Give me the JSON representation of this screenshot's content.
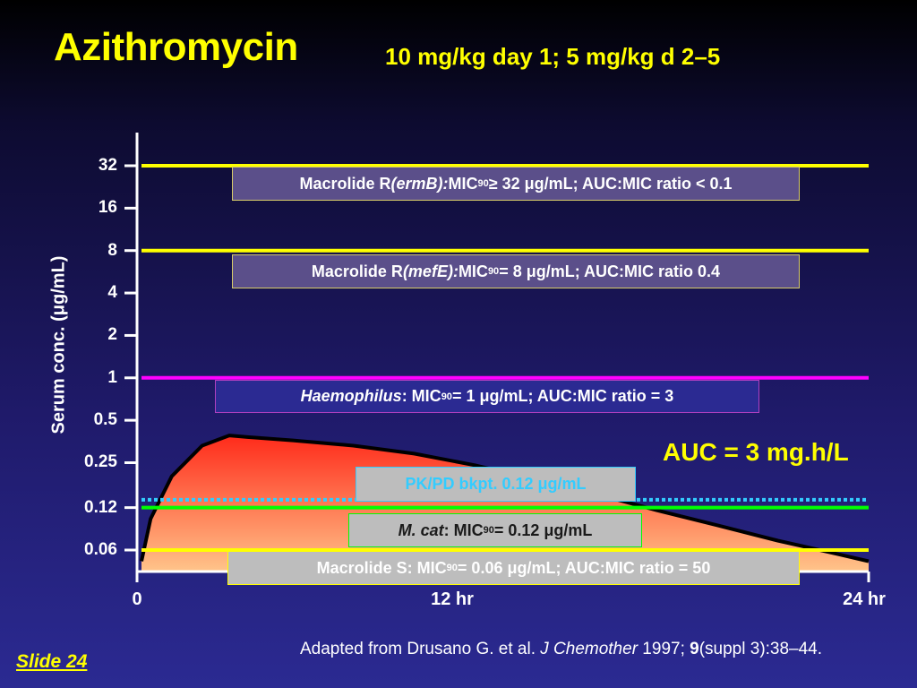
{
  "header": {
    "title": "Azithromycin",
    "subtitle": "10 mg/kg day 1; 5 mg/kg d 2–5"
  },
  "chart_data": {
    "type": "area",
    "ylabel": "Serum conc. (μg/mL)",
    "y_scale": "log2",
    "y_ticks": [
      "32",
      "16",
      "8",
      "4",
      "2",
      "1",
      "0.5",
      "0.25",
      "0.12",
      "0.06"
    ],
    "x_ticks": [
      "0",
      "12 hr",
      "24 hr"
    ],
    "xlim_hours": [
      0,
      24
    ],
    "series": [
      {
        "x_hours": [
          0,
          0.3,
          1,
          2,
          2.9,
          3.5,
          5,
          7,
          9,
          11,
          13,
          15,
          17,
          19,
          21,
          23,
          24
        ],
        "y": [
          0.05,
          0.1,
          0.2,
          0.33,
          0.39,
          0.38,
          0.36,
          0.33,
          0.29,
          0.24,
          0.19,
          0.15,
          0.115,
          0.09,
          0.07,
          0.056,
          0.05
        ]
      }
    ],
    "reference_lines": [
      {
        "value": 32,
        "color": "#ffff00",
        "style": "solid"
      },
      {
        "value": 8,
        "color": "#ffff00",
        "style": "solid"
      },
      {
        "value": 1,
        "color": "#ff00ff",
        "style": "solid"
      },
      {
        "value": 0.125,
        "color": "#33ccff",
        "style": "dotted"
      },
      {
        "value": 0.12,
        "color": "#00ff00",
        "style": "solid"
      },
      {
        "value": 0.06,
        "color": "#ffff00",
        "style": "solid"
      }
    ],
    "annotations": {
      "auc": "AUC = 3 mg.h/L"
    }
  },
  "boxes": {
    "ermb": {
      "pre": "Macrolide R ",
      "italic": "(ermB):",
      "mic": " MIC",
      "sub": "90",
      "post": " ≥ 32 μg/mL; AUC:MIC ratio < 0.1"
    },
    "mefe": {
      "pre": "Macrolide R ",
      "italic": "(mefE):",
      "mic": " MIC",
      "sub": "90",
      "post": " = 8 μg/mL; AUC:MIC ratio 0.4"
    },
    "haemophilus": {
      "italic": "Haemophilus",
      "mic": ": MIC",
      "sub": "90",
      "post": " = 1 μg/mL; AUC:MIC ratio = 3"
    },
    "pkpd": {
      "text": "PK/PD bkpt. 0.12 μg/mL"
    },
    "mcat": {
      "italic": "M. cat",
      "mic": ": MIC",
      "sub": "90",
      "post": " = 0.12 μg/mL"
    },
    "macrolide_s": {
      "pre": "Macrolide S: MIC",
      "sub": "90",
      "post": " = 0.06 μg/mL; AUC:MIC ratio = 50"
    }
  },
  "footer": {
    "slide": "Slide  24",
    "citation_pre": "Adapted from Drusano G. et al. ",
    "citation_journal": "J Chemother",
    "citation_year": " 1997; ",
    "citation_volume": "9",
    "citation_post": "(suppl 3):38–44."
  },
  "colors": {
    "title": "#ffff00",
    "mic_line_resistant": "#ffff00",
    "mic_line_haemophilus": "#ff00ff",
    "pkpd_line": "#33ccff",
    "mcat_line": "#00ff00",
    "curve_fill_top": "#ff2a1a",
    "curve_fill_bottom": "#ffc48a"
  }
}
